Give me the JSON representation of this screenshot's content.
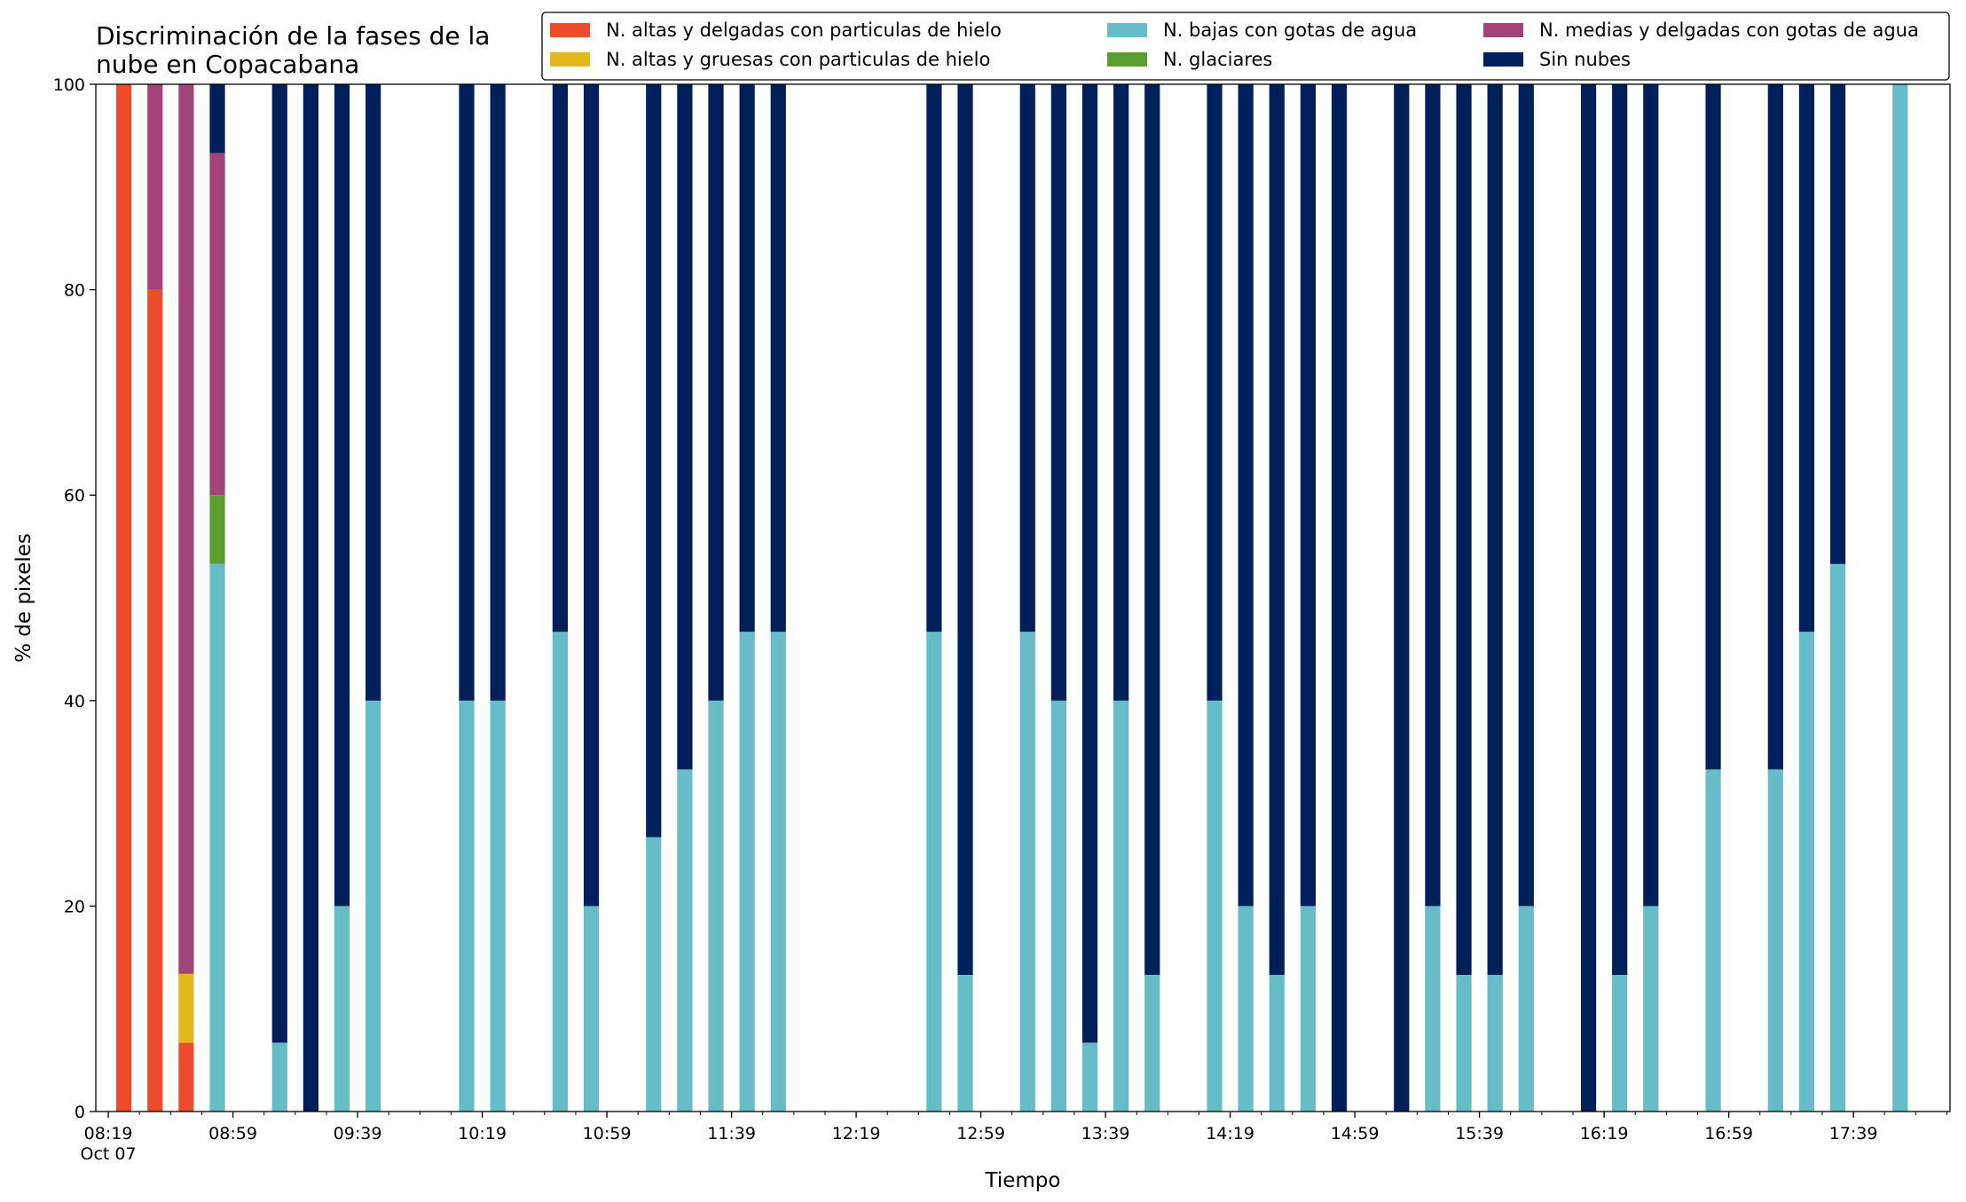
{
  "chart_data": {
    "type": "bar",
    "stacked": true,
    "title": "Discriminación de la fases de la\nnube en Copacabana",
    "xlabel": "Tiempo",
    "ylabel": "% de pixeles",
    "ylim": [
      0,
      100
    ],
    "yticks": [
      0,
      20,
      40,
      60,
      80,
      100
    ],
    "xlim": [
      "08:15",
      "18:10"
    ],
    "xticks": [
      "08:19",
      "08:59",
      "09:39",
      "10:19",
      "10:59",
      "11:39",
      "12:19",
      "12:59",
      "13:39",
      "14:19",
      "14:59",
      "15:39",
      "16:19",
      "16:59",
      "17:39"
    ],
    "xtick_labels": [
      "08:19\nOct 07",
      "08:59",
      "09:39",
      "10:19",
      "10:59",
      "11:39",
      "12:19",
      "12:59",
      "13:39",
      "14:19",
      "14:59",
      "15:39",
      "16:19",
      "16:59",
      "17:39"
    ],
    "minor_tick_interval_minutes": 10,
    "bar_width_minutes": 5,
    "grid": false,
    "legend_placement": "top-right",
    "times": [
      "08:24",
      "08:34",
      "08:44",
      "08:54",
      "09:14",
      "09:24",
      "09:34",
      "09:44",
      "10:14",
      "10:24",
      "10:44",
      "10:54",
      "11:14",
      "11:24",
      "11:34",
      "11:44",
      "11:54",
      "12:44",
      "12:54",
      "13:14",
      "13:24",
      "13:34",
      "13:44",
      "13:54",
      "14:14",
      "14:24",
      "14:34",
      "14:44",
      "14:54",
      "15:14",
      "15:24",
      "15:34",
      "15:44",
      "15:54",
      "16:14",
      "16:24",
      "16:34",
      "16:54",
      "17:14",
      "17:24",
      "17:34",
      "17:54"
    ],
    "series": [
      {
        "name": "N. altas y delgadas con particulas de hielo",
        "color": "#ee4b2b",
        "values": [
          100,
          80,
          6.7,
          0,
          0,
          0,
          0,
          0,
          0,
          0,
          0,
          0,
          0,
          0,
          0,
          0,
          0,
          0,
          0,
          0,
          0,
          0,
          0,
          0,
          0,
          0,
          0,
          0,
          0,
          0,
          0,
          0,
          0,
          0,
          0,
          0,
          0,
          0,
          0,
          0,
          0,
          0
        ]
      },
      {
        "name": "N. altas y gruesas con particulas de hielo",
        "color": "#e3b81c",
        "values": [
          0,
          0,
          6.7,
          0,
          0,
          0,
          0,
          0,
          0,
          0,
          0,
          0,
          0,
          0,
          0,
          0,
          0,
          0,
          0,
          0,
          0,
          0,
          0,
          0,
          0,
          0,
          0,
          0,
          0,
          0,
          0,
          0,
          0,
          0,
          0,
          0,
          0,
          0,
          0,
          0,
          0,
          0
        ]
      },
      {
        "name": "N. bajas con gotas de agua",
        "color": "#66bdc8",
        "values": [
          0,
          0,
          0,
          53.3,
          6.7,
          0,
          20,
          40,
          40,
          40,
          46.7,
          20,
          26.7,
          33.3,
          40,
          46.7,
          46.7,
          46.7,
          13.3,
          46.7,
          40,
          6.7,
          40,
          13.3,
          40,
          20,
          13.3,
          20,
          0,
          0,
          20,
          13.3,
          13.3,
          20,
          0,
          13.3,
          20,
          33.3,
          33.3,
          46.7,
          53.3,
          100
        ]
      },
      {
        "name": "N. glaciares",
        "color": "#5a9e2f",
        "values": [
          0,
          0,
          0,
          6.7,
          0,
          0,
          0,
          0,
          0,
          0,
          0,
          0,
          0,
          0,
          0,
          0,
          0,
          0,
          0,
          0,
          0,
          0,
          0,
          0,
          0,
          0,
          0,
          0,
          0,
          0,
          0,
          0,
          0,
          0,
          0,
          0,
          0,
          0,
          0,
          0,
          0,
          0
        ]
      },
      {
        "name": "N. medias y delgadas con gotas de agua",
        "color": "#a2437a",
        "values": [
          0,
          20,
          86.6,
          33.3,
          0,
          0,
          0,
          0,
          0,
          0,
          0,
          0,
          0,
          0,
          0,
          0,
          0,
          0,
          0,
          0,
          0,
          0,
          0,
          0,
          0,
          0,
          0,
          0,
          0,
          0,
          0,
          0,
          0,
          0,
          0,
          0,
          0,
          0,
          0,
          0,
          0,
          0
        ]
      },
      {
        "name": "Sin nubes",
        "color": "#00205b",
        "values": [
          0,
          0,
          0,
          6.7,
          93.3,
          100,
          80,
          60,
          60,
          60,
          53.3,
          80,
          73.3,
          66.7,
          60,
          53.3,
          53.3,
          53.3,
          86.7,
          53.3,
          60,
          93.3,
          60,
          86.7,
          60,
          80,
          86.7,
          80,
          100,
          100,
          80,
          86.7,
          86.7,
          80,
          100,
          86.7,
          80,
          66.7,
          66.7,
          53.3,
          46.7,
          0
        ]
      }
    ],
    "legend_columns": [
      [
        "N. altas y delgadas con particulas de hielo",
        "N. altas y gruesas con particulas de hielo"
      ],
      [
        "N. bajas con gotas de agua",
        "N. glaciares"
      ],
      [
        "N. medias y delgadas con gotas de agua",
        "Sin nubes"
      ]
    ]
  }
}
